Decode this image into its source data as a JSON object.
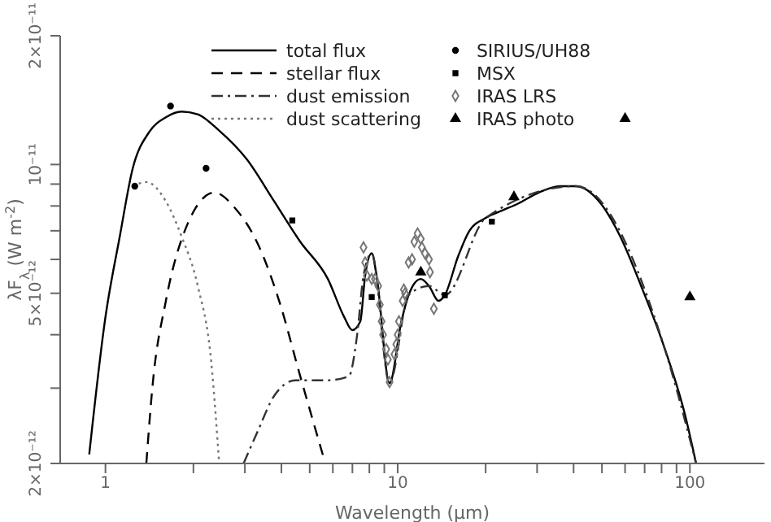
{
  "chart_data": {
    "type": "line",
    "xlabel": "Wavelength (μm)",
    "ylabel": "λF$_{λ}$ (W m$^{-2}$)",
    "log": "xy",
    "xlim": [
      0.7,
      180
    ],
    "ylim": [
      2e-12,
      2e-11
    ],
    "xticks": [
      1,
      {
        "value": 2,
        "label": null
      },
      {
        "value": 3,
        "label": null
      },
      {
        "value": 4,
        "label": null
      },
      {
        "value": 5,
        "label": null
      },
      {
        "value": 6,
        "label": null
      },
      {
        "value": 7,
        "label": null
      },
      {
        "value": 8,
        "label": null
      },
      {
        "value": 9,
        "label": null
      },
      10,
      {
        "value": 20,
        "label": null
      },
      {
        "value": 30,
        "label": null
      },
      {
        "value": 40,
        "label": null
      },
      {
        "value": 50,
        "label": null
      },
      {
        "value": 60,
        "label": null
      },
      {
        "value": 70,
        "label": null
      },
      {
        "value": 80,
        "label": null
      },
      {
        "value": 90,
        "label": null
      },
      100
    ],
    "yticks": [
      {
        "value": 2e-12,
        "label": "2×10⁻¹²"
      },
      {
        "value": 3e-12,
        "label": null
      },
      {
        "value": 4e-12,
        "label": null
      },
      {
        "value": 5e-12,
        "label": "5×10⁻¹²"
      },
      {
        "value": 6e-12,
        "label": null
      },
      {
        "value": 7e-12,
        "label": null
      },
      {
        "value": 8e-12,
        "label": null
      },
      {
        "value": 9e-12,
        "label": null
      },
      {
        "value": 1e-11,
        "label": "10⁻¹¹"
      },
      {
        "value": 2e-11,
        "label": "2×10⁻¹¹"
      }
    ],
    "legend": "top",
    "series": [
      {
        "name": "total flux",
        "line_style": "solid",
        "marker": "none",
        "color": "#000000",
        "x": [
          0.88,
          1.0,
          1.12,
          1.24,
          1.41,
          1.61,
          1.82,
          2.07,
          2.45,
          3.04,
          3.78,
          4.64,
          5.77,
          6.56,
          6.99,
          7.45,
          7.74,
          8.15,
          8.47,
          9.38,
          10.3,
          10.9,
          12.0,
          12.8,
          13.8,
          14.5,
          16.1,
          17.6,
          20.0,
          22.7,
          25.8,
          30.4,
          35.9,
          40.8,
          48.9,
          57.7,
          68.1,
          81.5,
          96.2,
          105
        ],
        "values": [
          2.1e-12,
          4.4e-12,
          6.8e-12,
          9.8e-12,
          1.19e-11,
          1.29e-11,
          1.33e-11,
          1.31e-11,
          1.2e-11,
          1.03e-11,
          8.2e-12,
          6.6e-12,
          5.4e-12,
          4.4e-12,
          4.1e-12,
          4.3e-12,
          5.5e-12,
          6.2e-12,
          5.5e-12,
          3.08e-12,
          4.3e-12,
          4.95e-12,
          5.4e-12,
          5.2e-12,
          4.8e-12,
          4.95e-12,
          6.1e-12,
          7e-12,
          7.5e-12,
          7.8e-12,
          8.1e-12,
          8.6e-12,
          8.9e-12,
          8.9e-12,
          8.2e-12,
          6.8e-12,
          5.2e-12,
          3.76e-12,
          2.6e-12,
          2e-12
        ]
      },
      {
        "name": "stellar flux",
        "line_style": "dashed",
        "marker": "none",
        "color": "#000000",
        "x": [
          1.38,
          1.45,
          1.61,
          1.9,
          2.36,
          2.78,
          3.33,
          3.93,
          4.64,
          5.55
        ],
        "values": [
          2e-12,
          3.05e-12,
          4.8e-12,
          7.2e-12,
          8.6e-12,
          7.9e-12,
          6.5e-12,
          4.8e-12,
          3.2e-12,
          2.09e-12
        ]
      },
      {
        "name": "dust emission",
        "line_style": "dashdot",
        "marker": "none",
        "color": "#333333",
        "x": [
          2.97,
          3.33,
          3.78,
          4.47,
          5.77,
          6.81,
          7.26,
          7.64,
          8.15,
          9.38,
          10.9,
          12.8,
          14.5,
          20.0,
          40.8,
          81.5,
          105
        ],
        "values": [
          2e-12,
          2.39e-12,
          2.88e-12,
          3.13e-12,
          3.13e-12,
          3.2e-12,
          3.98e-12,
          5.5e-12,
          6.2e-12,
          3.08e-12,
          4.95e-12,
          5.2e-12,
          4.95e-12,
          7.5e-12,
          8.9e-12,
          3.76e-12,
          2e-12
        ]
      },
      {
        "name": "dust scattering",
        "line_style": "dotted",
        "marker": "none",
        "color": "#777777",
        "x": [
          1.24,
          1.38,
          1.61,
          1.82,
          2.07,
          2.3,
          2.45
        ],
        "values": [
          8.9e-12,
          9.1e-12,
          8.2e-12,
          6.8e-12,
          5.2e-12,
          3.47e-12,
          2e-12
        ]
      },
      {
        "name": "SIRIUS/UH88",
        "type": "scatter",
        "marker": "circle",
        "color": "#000000",
        "x": [
          1.26,
          1.67,
          2.21
        ],
        "values": [
          8.9e-12,
          1.37e-11,
          9.8e-12
        ]
      },
      {
        "name": "MSX",
        "type": "scatter",
        "marker": "square",
        "color": "#000000",
        "x": [
          4.36,
          8.15,
          14.5,
          21.0
        ],
        "values": [
          7.4e-12,
          4.9e-12,
          4.95e-12,
          7.35e-12
        ]
      },
      {
        "name": "IRAS LRS",
        "type": "scatter",
        "marker": "diamond",
        "color": "#777777",
        "x": [
          7.64,
          7.74,
          7.84,
          8.15,
          8.36,
          8.58,
          8.69,
          8.81,
          8.91,
          9.14,
          9.26,
          9.38,
          9.75,
          9.89,
          10.0,
          10.1,
          10.4,
          10.5,
          10.6,
          10.9,
          11.2,
          11.4,
          11.7,
          12.0,
          12.1,
          12.4,
          12.8,
          12.9,
          13.3
        ],
        "values": [
          6.4e-12,
          5.9e-12,
          5.5e-12,
          5.4e-12,
          5.4e-12,
          5.2e-12,
          4.7e-12,
          4.3e-12,
          4e-12,
          3.7e-12,
          3.5e-12,
          3.1e-12,
          3.6e-12,
          3.8e-12,
          4e-12,
          4.3e-12,
          4.8e-12,
          5.1e-12,
          5e-12,
          5.9e-12,
          6e-12,
          6.6e-12,
          6.9e-12,
          6.7e-12,
          6.4e-12,
          6.2e-12,
          6e-12,
          5.6e-12,
          4.6e-12
        ]
      },
      {
        "name": "IRAS photo",
        "type": "scatter",
        "marker": "triangle",
        "color": "#000000",
        "x": [
          12,
          25,
          60,
          100
        ],
        "values": [
          5.6e-12,
          8.4e-12,
          1.28e-11,
          4.9e-12
        ]
      }
    ]
  }
}
